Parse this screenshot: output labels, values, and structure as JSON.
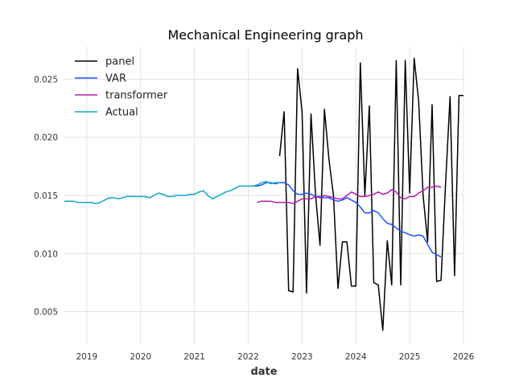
{
  "chart_data": {
    "type": "line",
    "title": "Mechanical Engineering graph",
    "xlabel": "date",
    "ylabel": "",
    "xlim": [
      "2018-08-01",
      "2026-01-01"
    ],
    "ylim": [
      0.0022,
      0.0278
    ],
    "x_ticks": [
      "2019",
      "2020",
      "2021",
      "2022",
      "2023",
      "2024",
      "2025",
      "2026"
    ],
    "y_ticks": [
      "0.005",
      "0.010",
      "0.015",
      "0.020",
      "0.025"
    ],
    "y_tick_values": [
      0.005,
      0.01,
      0.015,
      0.02,
      0.025
    ],
    "grid": true,
    "legend_position": "upper-left",
    "series": [
      {
        "name": "panel",
        "color": "#000000",
        "x": [
          "2022-08",
          "2022-09",
          "2022-10",
          "2022-11",
          "2022-12",
          "2023-01",
          "2023-02",
          "2023-03",
          "2023-04",
          "2023-05",
          "2023-06",
          "2023-07",
          "2023-08",
          "2023-09",
          "2023-10",
          "2023-11",
          "2023-12",
          "2024-01",
          "2024-02",
          "2024-03",
          "2024-04",
          "2024-05",
          "2024-06",
          "2024-07",
          "2024-08",
          "2024-09",
          "2024-10",
          "2024-11",
          "2024-12",
          "2025-01",
          "2025-02",
          "2025-03",
          "2025-04",
          "2025-05",
          "2025-06",
          "2025-07",
          "2025-08",
          "2025-09",
          "2025-10",
          "2025-11",
          "2025-12",
          "2026-01"
        ],
        "values": [
          0.0184,
          0.0222,
          0.0068,
          0.0067,
          0.0259,
          0.0222,
          0.0066,
          0.022,
          0.0151,
          0.0107,
          0.0224,
          0.0181,
          0.015,
          0.007,
          0.011,
          0.011,
          0.0072,
          0.0072,
          0.0264,
          0.015,
          0.0227,
          0.0075,
          0.0073,
          0.0034,
          0.0111,
          0.0073,
          0.0266,
          0.0073,
          0.0266,
          0.0152,
          0.0268,
          0.0231,
          0.015,
          0.011,
          0.0228,
          0.0076,
          0.0077,
          0.016,
          0.0235,
          0.0081,
          0.0236,
          0.0236
        ]
      },
      {
        "name": "VAR",
        "color": "#1a53ff",
        "x": [
          "2022-02",
          "2022-03",
          "2022-04",
          "2022-05",
          "2022-06",
          "2022-07",
          "2022-08",
          "2022-09",
          "2022-10",
          "2022-11",
          "2022-12",
          "2023-01",
          "2023-02",
          "2023-03",
          "2023-04",
          "2023-05",
          "2023-06",
          "2023-07",
          "2023-08",
          "2023-09",
          "2023-10",
          "2023-11",
          "2023-12",
          "2024-01",
          "2024-02",
          "2024-03",
          "2024-04",
          "2024-05",
          "2024-06",
          "2024-07",
          "2024-08",
          "2024-09",
          "2024-10",
          "2024-11",
          "2024-12",
          "2025-01",
          "2025-02",
          "2025-03",
          "2025-04",
          "2025-05",
          "2025-06",
          "2025-07",
          "2025-08"
        ],
        "values": [
          0.0158,
          0.0158,
          0.0159,
          0.0161,
          0.0161,
          0.016,
          0.0161,
          0.0161,
          0.0159,
          0.0154,
          0.0151,
          0.0151,
          0.0152,
          0.0151,
          0.0149,
          0.0149,
          0.0148,
          0.0148,
          0.0146,
          0.0145,
          0.0146,
          0.0148,
          0.0146,
          0.0144,
          0.014,
          0.0135,
          0.0135,
          0.0137,
          0.0135,
          0.013,
          0.0126,
          0.0125,
          0.0122,
          0.0119,
          0.0118,
          0.0116,
          0.0115,
          0.0116,
          0.0115,
          0.0108,
          0.0101,
          0.0099,
          0.0097
        ]
      },
      {
        "name": "transformer",
        "color": "#b21fb2",
        "x": [
          "2022-03",
          "2022-04",
          "2022-05",
          "2022-06",
          "2022-07",
          "2022-08",
          "2022-09",
          "2022-10",
          "2022-11",
          "2022-12",
          "2023-01",
          "2023-02",
          "2023-03",
          "2023-04",
          "2023-05",
          "2023-06",
          "2023-07",
          "2023-08",
          "2023-09",
          "2023-10",
          "2023-11",
          "2023-12",
          "2024-01",
          "2024-02",
          "2024-03",
          "2024-04",
          "2024-05",
          "2024-06",
          "2024-07",
          "2024-08",
          "2024-09",
          "2024-10",
          "2024-11",
          "2024-12",
          "2025-01",
          "2025-02",
          "2025-03",
          "2025-04",
          "2025-05",
          "2025-06",
          "2025-07",
          "2025-08"
        ],
        "values": [
          0.0144,
          0.0145,
          0.0145,
          0.0145,
          0.0144,
          0.0144,
          0.0144,
          0.0144,
          0.0143,
          0.0145,
          0.0147,
          0.0147,
          0.0147,
          0.0149,
          0.0148,
          0.015,
          0.0149,
          0.0148,
          0.0147,
          0.0147,
          0.015,
          0.0153,
          0.0151,
          0.0149,
          0.0149,
          0.015,
          0.0151,
          0.0153,
          0.0151,
          0.0152,
          0.0155,
          0.0153,
          0.0148,
          0.0147,
          0.0149,
          0.0149,
          0.0152,
          0.0154,
          0.0157,
          0.0157,
          0.0158,
          0.0157
        ]
      },
      {
        "name": "Actual",
        "color": "#0fa8c8",
        "x": [
          "2018-08",
          "2018-09",
          "2018-10",
          "2018-11",
          "2018-12",
          "2019-01",
          "2019-02",
          "2019-03",
          "2019-04",
          "2019-05",
          "2019-06",
          "2019-07",
          "2019-08",
          "2019-09",
          "2019-10",
          "2019-11",
          "2019-12",
          "2020-01",
          "2020-02",
          "2020-03",
          "2020-04",
          "2020-05",
          "2020-06",
          "2020-07",
          "2020-08",
          "2020-09",
          "2020-10",
          "2020-11",
          "2020-12",
          "2021-01",
          "2021-02",
          "2021-03",
          "2021-04",
          "2021-05",
          "2021-06",
          "2021-07",
          "2021-08",
          "2021-09",
          "2021-10",
          "2021-11",
          "2021-12",
          "2022-01",
          "2022-02",
          "2022-03",
          "2022-04",
          "2022-05",
          "2022-06",
          "2022-07",
          "2022-08"
        ],
        "values": [
          0.0145,
          0.0145,
          0.0145,
          0.0144,
          0.0144,
          0.0144,
          0.0144,
          0.0143,
          0.0144,
          0.0146,
          0.0148,
          0.0148,
          0.0147,
          0.0148,
          0.0149,
          0.0149,
          0.0149,
          0.0149,
          0.0149,
          0.0148,
          0.015,
          0.0152,
          0.0151,
          0.0149,
          0.0149,
          0.015,
          0.015,
          0.015,
          0.0151,
          0.0151,
          0.0153,
          0.0154,
          0.015,
          0.0147,
          0.0149,
          0.0151,
          0.0153,
          0.0154,
          0.0156,
          0.0158,
          0.0158,
          0.0158,
          0.0158,
          0.0159,
          0.0161,
          0.0162,
          0.016,
          0.0161,
          0.0161
        ]
      }
    ]
  }
}
